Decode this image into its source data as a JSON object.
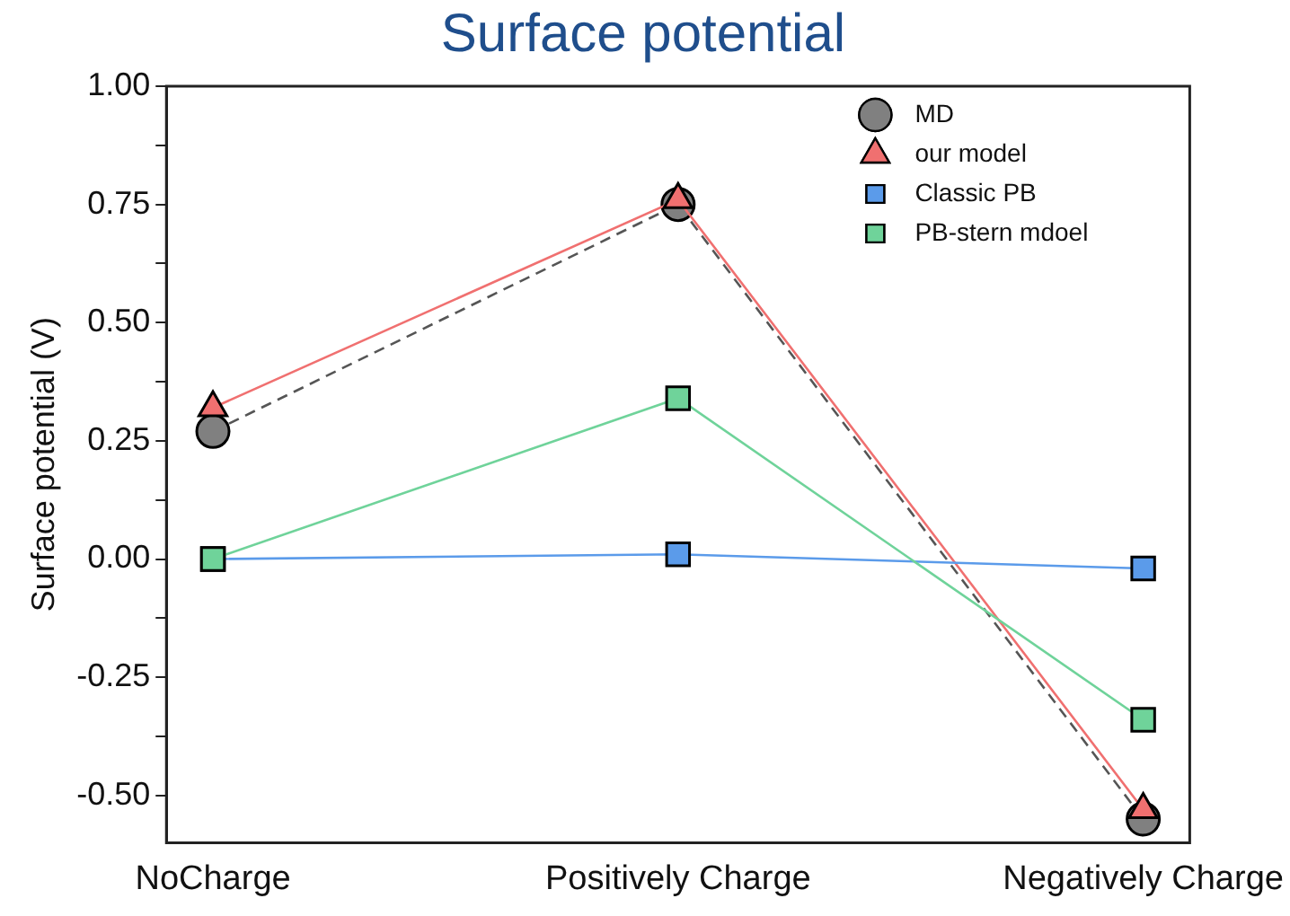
{
  "chart_data": {
    "type": "line",
    "title": "Surface potential",
    "ylabel": "Surface potential (V)",
    "categories": [
      "NoCharge",
      "Positively Charge",
      "Negatively Charge"
    ],
    "ylim": [
      -0.6,
      1.0
    ],
    "yticks": [
      {
        "value": -0.5,
        "label": "-0.50"
      },
      {
        "value": -0.375,
        "label": null
      },
      {
        "value": -0.25,
        "label": "-0.25"
      },
      {
        "value": -0.125,
        "label": null
      },
      {
        "value": 0,
        "label": "0.00"
      },
      {
        "value": 0.125,
        "label": null
      },
      {
        "value": 0.25,
        "label": "0.25"
      },
      {
        "value": 0.375,
        "label": null
      },
      {
        "value": 0.5,
        "label": "0.50"
      },
      {
        "value": 0.625,
        "label": null
      },
      {
        "value": 0.75,
        "label": "0.75"
      },
      {
        "value": 0.875,
        "label": null
      },
      {
        "value": 1,
        "label": "1.00"
      }
    ],
    "legend": "top right",
    "grid": false,
    "series": [
      {
        "name": "MD",
        "color": "#808080",
        "marker": "circle",
        "line_style": "dashed",
        "values": [
          0.27,
          0.75,
          -0.55
        ]
      },
      {
        "name": "our model",
        "color": "#f07070",
        "marker": "triangle",
        "line_style": "solid",
        "values": [
          0.32,
          0.76,
          -0.53
        ]
      },
      {
        "name": "Classic PB",
        "color": "#5b9bea",
        "marker": "square",
        "line_style": "solid",
        "values": [
          0.0,
          0.01,
          -0.02
        ]
      },
      {
        "name": "PB-stern mdoel",
        "color": "#6fd39a",
        "marker": "square",
        "line_style": "solid",
        "values": [
          0.0,
          0.34,
          -0.34
        ]
      }
    ]
  }
}
